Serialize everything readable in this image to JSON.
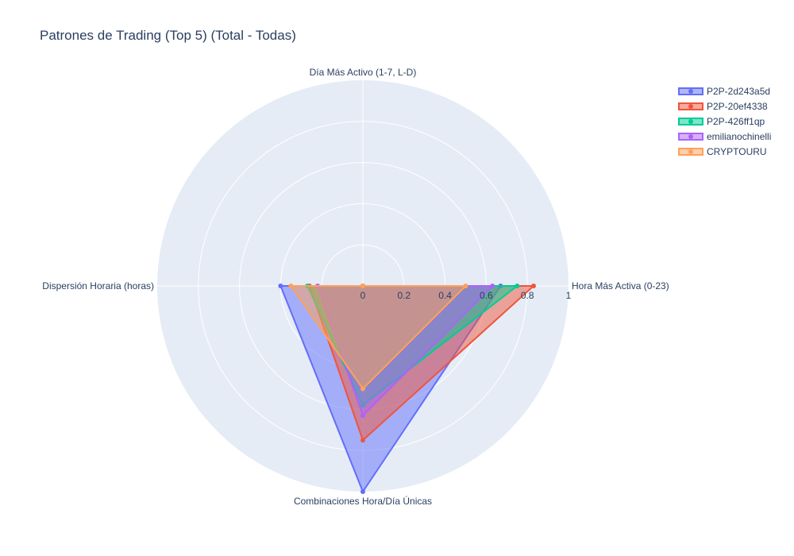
{
  "chart_data": {
    "type": "radar",
    "title": "Patrones de Trading (Top 5) (Total - Todas)",
    "axes": [
      "Día Más Activo (1-7, L-D)",
      "Hora Más Activa (0-23)",
      "Combinaciones Hora/Día Únicas",
      "Dispersión Horaria (horas)"
    ],
    "radial_range": [
      0,
      1
    ],
    "radial_ticks": [
      "0",
      "0.2",
      "0.4",
      "0.6",
      "0.8",
      "1"
    ],
    "radial_tick_values": [
      0,
      0.2,
      0.4,
      0.6,
      0.8,
      1
    ],
    "grid": true,
    "legend_position": "top-right",
    "series": [
      {
        "name": "P2P-2d243a5d",
        "color": "#636efa",
        "values": [
          0,
          0.67,
          1.0,
          0.4
        ]
      },
      {
        "name": "P2P-20ef4338",
        "color": "#ef553b",
        "values": [
          0,
          0.83,
          0.75,
          0.26
        ]
      },
      {
        "name": "P2P-426ff1qp",
        "color": "#00cc96",
        "values": [
          0,
          0.75,
          0.58,
          0.27
        ]
      },
      {
        "name": "emilianochinelli",
        "color": "#ab63fa",
        "values": [
          0,
          0.63,
          0.63,
          0.22
        ]
      },
      {
        "name": "CRYPTOURU",
        "color": "#ffa15a",
        "values": [
          0,
          0.5,
          0.5,
          0.35
        ]
      }
    ]
  }
}
